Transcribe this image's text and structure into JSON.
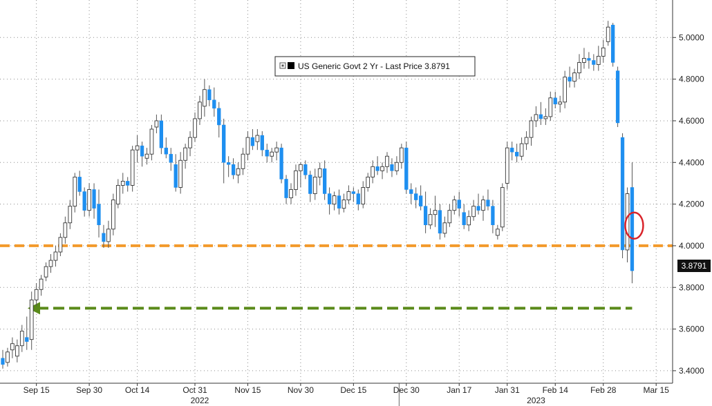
{
  "chart_data": {
    "type": "candlestick",
    "title": "",
    "legend": {
      "label": "US Generic Govt 2 Yr - Last Price 3.8791",
      "placement": "top-center"
    },
    "last_price_label": "3.8791",
    "ylim": [
      3.34,
      5.18
    ],
    "yticks": [
      "3.4000",
      "3.6000",
      "3.8000",
      "4.0000",
      "4.2000",
      "4.4000",
      "4.6000",
      "4.8000",
      "5.0000"
    ],
    "xticks": [
      {
        "label": "Sep 15",
        "index": 7
      },
      {
        "label": "Sep 30",
        "index": 18
      },
      {
        "label": "Oct 14",
        "index": 28
      },
      {
        "label": "Oct 31",
        "index": 40
      },
      {
        "label": "Nov 15",
        "index": 51
      },
      {
        "label": "Nov 30",
        "index": 62
      },
      {
        "label": "Dec 15",
        "index": 73
      },
      {
        "label": "Dec 30",
        "index": 84
      },
      {
        "label": "Jan 17",
        "index": 95
      },
      {
        "label": "Jan 31",
        "index": 105
      },
      {
        "label": "Feb 14",
        "index": 115
      },
      {
        "label": "Feb 28",
        "index": 125
      },
      {
        "label": "Mar 15",
        "index": 136
      }
    ],
    "year_labels": [
      {
        "label": "2022",
        "index": 41
      },
      {
        "label": "2023",
        "index": 111
      }
    ],
    "year_divider_index": 83,
    "reference_lines": [
      {
        "value": 4.0,
        "color": "#f39a2b",
        "style": "dashed"
      },
      {
        "value": 3.7,
        "color": "#5a8a1a",
        "style": "dashed-arrow"
      }
    ],
    "highlight_circle_index": 131,
    "colors": {
      "up": "#ffffff",
      "down": "#1e8ff0",
      "wick": "#555555",
      "grid": "#8a8a8a"
    },
    "ohlc": [
      [
        3.46,
        3.5,
        3.41,
        3.43
      ],
      [
        3.44,
        3.51,
        3.42,
        3.49
      ],
      [
        3.5,
        3.56,
        3.46,
        3.53
      ],
      [
        3.47,
        3.55,
        3.44,
        3.52
      ],
      [
        3.52,
        3.62,
        3.49,
        3.59
      ],
      [
        3.56,
        3.66,
        3.5,
        3.54
      ],
      [
        3.55,
        3.78,
        3.5,
        3.74
      ],
      [
        3.74,
        3.82,
        3.71,
        3.79
      ],
      [
        3.79,
        3.86,
        3.76,
        3.84
      ],
      [
        3.85,
        3.92,
        3.83,
        3.9
      ],
      [
        3.9,
        3.96,
        3.87,
        3.93
      ],
      [
        3.93,
        4.0,
        3.9,
        3.97
      ],
      [
        3.97,
        4.06,
        3.95,
        4.04
      ],
      [
        4.04,
        4.14,
        4.01,
        4.11
      ],
      [
        4.11,
        4.22,
        4.08,
        4.19
      ],
      [
        4.19,
        4.35,
        4.16,
        4.33
      ],
      [
        4.33,
        4.36,
        4.24,
        4.26
      ],
      [
        4.26,
        4.28,
        4.14,
        4.17
      ],
      [
        4.17,
        4.3,
        4.14,
        4.27
      ],
      [
        4.27,
        4.3,
        4.13,
        4.18
      ],
      [
        4.2,
        4.27,
        4.04,
        4.1
      ],
      [
        4.06,
        4.1,
        3.99,
        4.02
      ],
      [
        4.02,
        4.12,
        3.99,
        4.08
      ],
      [
        4.08,
        4.25,
        4.05,
        4.22
      ],
      [
        4.2,
        4.32,
        4.18,
        4.29
      ],
      [
        4.29,
        4.35,
        4.25,
        4.31
      ],
      [
        4.31,
        4.33,
        4.26,
        4.29
      ],
      [
        4.29,
        4.48,
        4.26,
        4.46
      ],
      [
        4.46,
        4.53,
        4.4,
        4.48
      ],
      [
        4.48,
        4.5,
        4.38,
        4.43
      ],
      [
        4.42,
        4.47,
        4.39,
        4.44
      ],
      [
        4.44,
        4.58,
        4.41,
        4.56
      ],
      [
        4.57,
        4.63,
        4.54,
        4.6
      ],
      [
        4.6,
        4.63,
        4.44,
        4.47
      ],
      [
        4.47,
        4.52,
        4.42,
        4.44
      ],
      [
        4.44,
        4.47,
        4.36,
        4.4
      ],
      [
        4.39,
        4.44,
        4.26,
        4.28
      ],
      [
        4.28,
        4.45,
        4.25,
        4.41
      ],
      [
        4.41,
        4.49,
        4.37,
        4.47
      ],
      [
        4.47,
        4.55,
        4.43,
        4.52
      ],
      [
        4.52,
        4.64,
        4.5,
        4.61
      ],
      [
        4.61,
        4.72,
        4.58,
        4.69
      ],
      [
        4.67,
        4.8,
        4.62,
        4.75
      ],
      [
        4.75,
        4.77,
        4.67,
        4.7
      ],
      [
        4.7,
        4.76,
        4.62,
        4.66
      ],
      [
        4.66,
        4.69,
        4.52,
        4.58
      ],
      [
        4.58,
        4.61,
        4.3,
        4.4
      ],
      [
        4.4,
        4.43,
        4.33,
        4.39
      ],
      [
        4.39,
        4.42,
        4.32,
        4.34
      ],
      [
        4.34,
        4.4,
        4.3,
        4.37
      ],
      [
        4.37,
        4.47,
        4.34,
        4.44
      ],
      [
        4.44,
        4.55,
        4.41,
        4.52
      ],
      [
        4.52,
        4.56,
        4.46,
        4.48
      ],
      [
        4.5,
        4.56,
        4.46,
        4.53
      ],
      [
        4.53,
        4.55,
        4.43,
        4.46
      ],
      [
        4.46,
        4.49,
        4.4,
        4.43
      ],
      [
        4.43,
        4.47,
        4.4,
        4.45
      ],
      [
        4.45,
        4.5,
        4.41,
        4.47
      ],
      [
        4.47,
        4.49,
        4.3,
        4.32
      ],
      [
        4.32,
        4.34,
        4.2,
        4.23
      ],
      [
        4.23,
        4.3,
        4.2,
        4.27
      ],
      [
        4.27,
        4.39,
        4.24,
        4.36
      ],
      [
        4.36,
        4.4,
        4.28,
        4.39
      ],
      [
        4.39,
        4.41,
        4.32,
        4.34
      ],
      [
        4.34,
        4.36,
        4.21,
        4.25
      ],
      [
        4.25,
        4.37,
        4.22,
        4.33
      ],
      [
        4.33,
        4.4,
        4.29,
        4.37
      ],
      [
        4.37,
        4.41,
        4.22,
        4.25
      ],
      [
        4.25,
        4.28,
        4.15,
        4.2
      ],
      [
        4.2,
        4.26,
        4.17,
        4.24
      ],
      [
        4.24,
        4.27,
        4.15,
        4.18
      ],
      [
        4.18,
        4.25,
        4.16,
        4.22
      ],
      [
        4.22,
        4.29,
        4.2,
        4.26
      ],
      [
        4.26,
        4.28,
        4.21,
        4.25
      ],
      [
        4.25,
        4.27,
        4.17,
        4.2
      ],
      [
        4.2,
        4.31,
        4.18,
        4.28
      ],
      [
        4.28,
        4.35,
        4.26,
        4.33
      ],
      [
        4.33,
        4.41,
        4.3,
        4.38
      ],
      [
        4.38,
        4.43,
        4.34,
        4.36
      ],
      [
        4.36,
        4.4,
        4.32,
        4.38
      ],
      [
        4.38,
        4.45,
        4.35,
        4.43
      ],
      [
        4.39,
        4.42,
        4.33,
        4.36
      ],
      [
        4.36,
        4.43,
        4.34,
        4.4
      ],
      [
        4.4,
        4.49,
        4.37,
        4.47
      ],
      [
        4.47,
        4.5,
        4.25,
        4.27
      ],
      [
        4.27,
        4.3,
        4.2,
        4.25
      ],
      [
        4.25,
        4.28,
        4.18,
        4.22
      ],
      [
        4.24,
        4.29,
        4.17,
        4.19
      ],
      [
        4.19,
        4.26,
        4.06,
        4.1
      ],
      [
        4.1,
        4.18,
        4.08,
        4.15
      ],
      [
        4.15,
        4.24,
        4.09,
        4.17
      ],
      [
        4.17,
        4.2,
        4.03,
        4.06
      ],
      [
        4.06,
        4.14,
        4.04,
        4.11
      ],
      [
        4.11,
        4.2,
        4.09,
        4.17
      ],
      [
        4.17,
        4.24,
        4.15,
        4.22
      ],
      [
        4.22,
        4.26,
        4.14,
        4.18
      ],
      [
        4.16,
        4.2,
        4.08,
        4.1
      ],
      [
        4.1,
        4.17,
        4.07,
        4.14
      ],
      [
        4.14,
        4.22,
        4.12,
        4.19
      ],
      [
        4.19,
        4.25,
        4.15,
        4.17
      ],
      [
        4.17,
        4.24,
        4.12,
        4.22
      ],
      [
        4.22,
        4.27,
        4.17,
        4.19
      ],
      [
        4.19,
        4.22,
        4.06,
        4.1
      ],
      [
        4.05,
        4.1,
        4.03,
        4.08
      ],
      [
        4.09,
        4.3,
        4.07,
        4.28
      ],
      [
        4.3,
        4.5,
        4.27,
        4.47
      ],
      [
        4.47,
        4.5,
        4.41,
        4.45
      ],
      [
        4.45,
        4.49,
        4.4,
        4.43
      ],
      [
        4.43,
        4.52,
        4.41,
        4.49
      ],
      [
        4.49,
        4.55,
        4.46,
        4.52
      ],
      [
        4.52,
        4.62,
        4.48,
        4.6
      ],
      [
        4.6,
        4.67,
        4.57,
        4.63
      ],
      [
        4.63,
        4.69,
        4.58,
        4.61
      ],
      [
        4.61,
        4.66,
        4.58,
        4.62
      ],
      [
        4.62,
        4.74,
        4.6,
        4.71
      ],
      [
        4.71,
        4.74,
        4.66,
        4.68
      ],
      [
        4.68,
        4.72,
        4.64,
        4.69
      ],
      [
        4.69,
        4.84,
        4.66,
        4.81
      ],
      [
        4.81,
        4.86,
        4.76,
        4.79
      ],
      [
        4.79,
        4.85,
        4.76,
        4.83
      ],
      [
        4.83,
        4.92,
        4.8,
        4.88
      ],
      [
        4.88,
        4.95,
        4.85,
        4.9
      ],
      [
        4.9,
        4.93,
        4.85,
        4.89
      ],
      [
        4.89,
        4.92,
        4.84,
        4.87
      ],
      [
        4.87,
        4.96,
        4.84,
        4.91
      ],
      [
        4.91,
        4.99,
        4.88,
        4.95
      ],
      [
        4.98,
        5.08,
        4.96,
        5.05
      ],
      [
        5.06,
        5.07,
        4.86,
        4.88
      ],
      [
        4.84,
        4.86,
        4.57,
        4.59
      ],
      [
        4.52,
        4.54,
        3.94,
        3.98
      ],
      [
        3.98,
        4.28,
        3.92,
        4.25
      ],
      [
        4.28,
        4.4,
        3.82,
        3.88
      ]
    ]
  }
}
